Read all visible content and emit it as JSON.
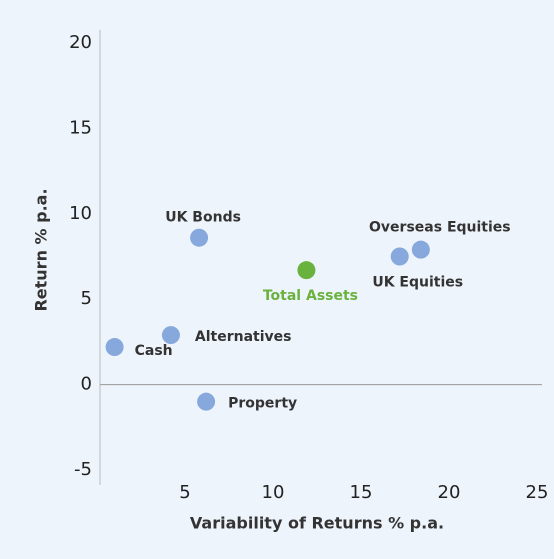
{
  "chart_data": {
    "type": "scatter",
    "x_label": "Variability of Returns % p.a.",
    "y_label": "Return % p.a.",
    "labels": [
      "Cash",
      "Alternatives",
      "UK Bonds",
      "Property",
      "Total Assets",
      "UK Equities",
      "Overseas Equities"
    ],
    "x": [
      1.0,
      4.2,
      5.8,
      6.2,
      11.9,
      17.2,
      18.4
    ],
    "values": [
      2.2,
      2.9,
      8.6,
      -1.0,
      6.7,
      7.5,
      7.9
    ],
    "colors": [
      "#86a8dc",
      "#86a8dc",
      "#86a8dc",
      "#86a8dc",
      "#6ab23e",
      "#86a8dc",
      "#86a8dc"
    ],
    "xlim": [
      0,
      25
    ],
    "xticks": [
      5,
      10,
      15,
      20,
      25
    ],
    "ylim": [
      -5,
      20
    ],
    "yticks": [
      -5,
      0,
      5,
      10,
      15,
      20
    ]
  }
}
